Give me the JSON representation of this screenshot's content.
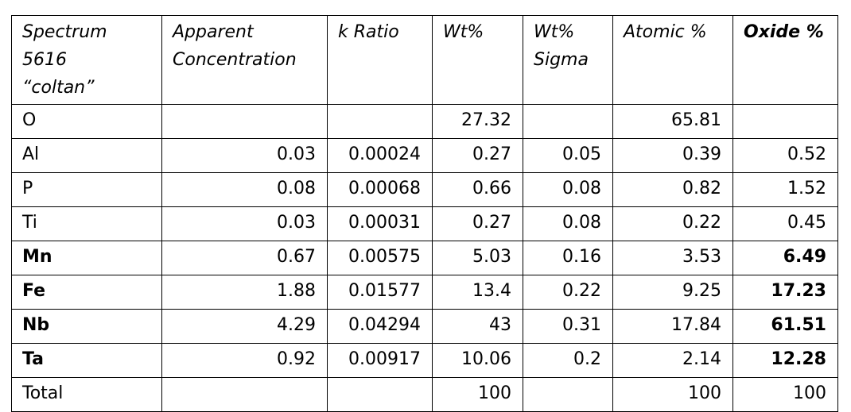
{
  "table": {
    "header": {
      "spectrum": [
        "Spectrum",
        "5616",
        "“coltan”"
      ],
      "apparent": [
        "Apparent",
        "Concentration"
      ],
      "k_ratio": [
        "k Ratio"
      ],
      "wt": [
        "Wt%"
      ],
      "wt_sigma": [
        "Wt%",
        "Sigma"
      ],
      "atomic": [
        "Atomic %"
      ],
      "oxide": [
        "Oxide %"
      ]
    },
    "rows": [
      {
        "element": "O",
        "bold": false,
        "apparent": "",
        "k_ratio": "",
        "wt": "27.32",
        "wt_sigma": "",
        "atomic": "65.81",
        "oxide": ""
      },
      {
        "element": "Al",
        "bold": false,
        "apparent": "0.03",
        "k_ratio": "0.00024",
        "wt": "0.27",
        "wt_sigma": "0.05",
        "atomic": "0.39",
        "oxide": "0.52"
      },
      {
        "element": "P",
        "bold": false,
        "apparent": "0.08",
        "k_ratio": "0.00068",
        "wt": "0.66",
        "wt_sigma": "0.08",
        "atomic": "0.82",
        "oxide": "1.52"
      },
      {
        "element": "Ti",
        "bold": false,
        "apparent": "0.03",
        "k_ratio": "0.00031",
        "wt": "0.27",
        "wt_sigma": "0.08",
        "atomic": "0.22",
        "oxide": "0.45"
      },
      {
        "element": "Mn",
        "bold": true,
        "apparent": "0.67",
        "k_ratio": "0.00575",
        "wt": "5.03",
        "wt_sigma": "0.16",
        "atomic": "3.53",
        "oxide": "6.49"
      },
      {
        "element": "Fe",
        "bold": true,
        "apparent": "1.88",
        "k_ratio": "0.01577",
        "wt": "13.4",
        "wt_sigma": "0.22",
        "atomic": "9.25",
        "oxide": "17.23"
      },
      {
        "element": "Nb",
        "bold": true,
        "apparent": "4.29",
        "k_ratio": "0.04294",
        "wt": "43",
        "wt_sigma": "0.31",
        "atomic": "17.84",
        "oxide": "61.51"
      },
      {
        "element": "Ta",
        "bold": true,
        "apparent": "0.92",
        "k_ratio": "0.00917",
        "wt": "10.06",
        "wt_sigma": "0.2",
        "atomic": "2.14",
        "oxide": "12.28"
      },
      {
        "element": "Total",
        "bold": false,
        "apparent": "",
        "k_ratio": "",
        "wt": "100",
        "wt_sigma": "",
        "atomic": "100",
        "oxide": "100"
      }
    ]
  }
}
